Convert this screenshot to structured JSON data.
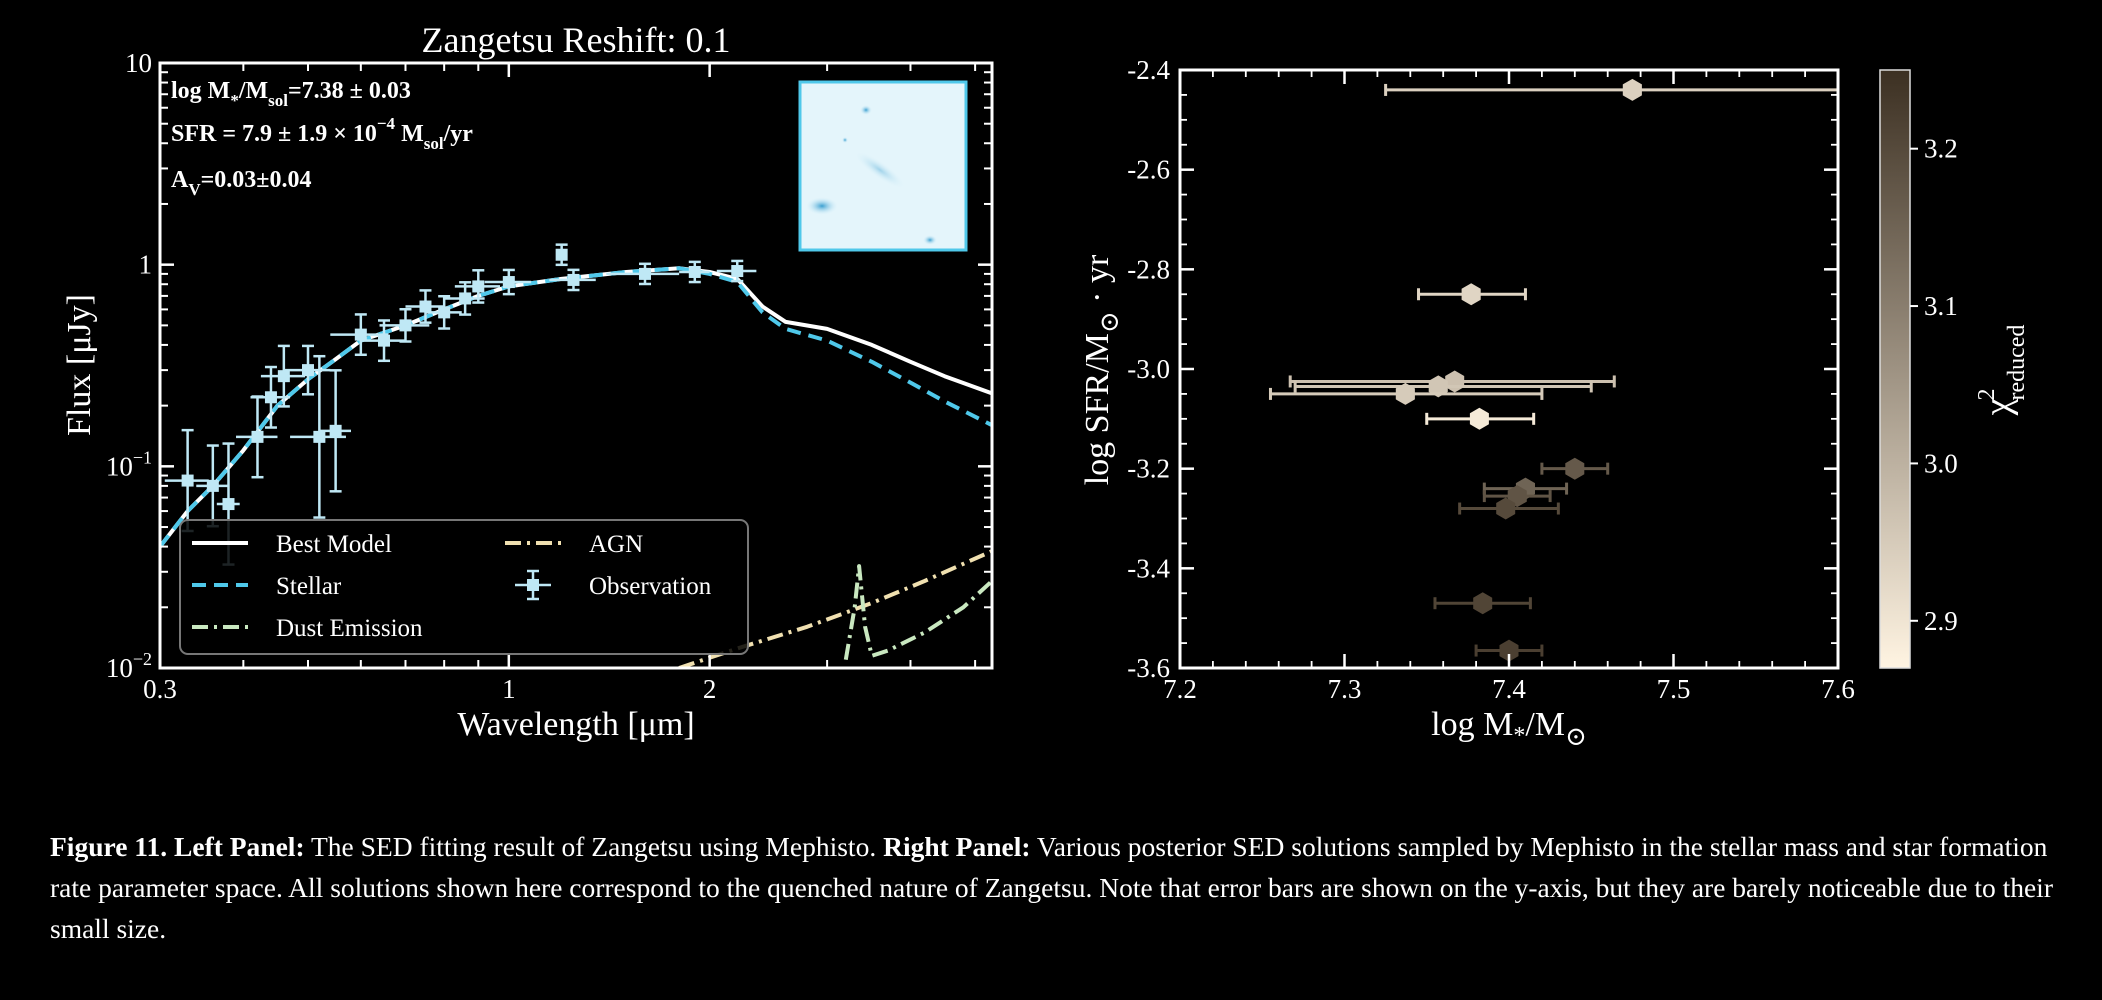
{
  "chart_data": [
    {
      "type": "line",
      "title": "Zangetsu  Reshift: 0.1",
      "xlabel": "Wavelength [μm]",
      "ylabel": "Flux [μJy]",
      "xscale": "log",
      "yscale": "log",
      "xlim": [
        0.3,
        5.3
      ],
      "ylim": [
        0.01,
        10
      ],
      "x_ticks": [
        {
          "v": 0.3,
          "label": "0.3"
        },
        {
          "v": 1,
          "label": "1"
        },
        {
          "v": 2,
          "label": "2"
        }
      ],
      "y_ticks": [
        {
          "v": 0.01,
          "base": "10",
          "exp": "−2"
        },
        {
          "v": 0.1,
          "base": "10",
          "exp": "−1"
        },
        {
          "v": 1,
          "label": "1"
        },
        {
          "v": 10,
          "label": "10"
        }
      ],
      "annotations": {
        "mass": {
          "a": "log M",
          "b": "*",
          "c": "/M",
          "d": "sol",
          "e": "=7.38 ± 0.03"
        },
        "sfr": {
          "a": "SFR = 7.9 ± 1.9 × 10",
          "b": "−4",
          "c": " M",
          "d": "sol",
          "e": "/yr"
        },
        "av": {
          "a": "A",
          "b": "V",
          "c": "=0.03±0.04"
        }
      },
      "legend_position": "lower-left",
      "legend": [
        {
          "label": "Best Model",
          "color": "#ffffff",
          "style": "solid"
        },
        {
          "label": "AGN",
          "color": "#f0e0b0",
          "style": "dashdot"
        },
        {
          "label": "Stellar",
          "color": "#4fc8ea",
          "style": "dashed"
        },
        {
          "label": "Observation",
          "color": "#bfe8f5",
          "style": "errorbar"
        },
        {
          "label": "Dust Emission",
          "color": "#c9e8c0",
          "style": "dashdot"
        }
      ],
      "series": [
        {
          "name": "Best Model",
          "color": "#ffffff",
          "x": [
            0.3,
            0.33,
            0.36,
            0.4,
            0.45,
            0.5,
            0.55,
            0.6,
            0.7,
            0.8,
            0.9,
            1.0,
            1.2,
            1.5,
            1.8,
            2.0,
            2.2,
            2.4,
            2.6,
            3.0,
            3.5,
            4.0,
            4.5,
            5.3
          ],
          "y": [
            0.04,
            0.06,
            0.08,
            0.12,
            0.2,
            0.27,
            0.34,
            0.42,
            0.5,
            0.6,
            0.7,
            0.78,
            0.85,
            0.92,
            0.96,
            0.92,
            0.85,
            0.62,
            0.52,
            0.48,
            0.4,
            0.33,
            0.28,
            0.23
          ]
        },
        {
          "name": "Stellar",
          "color": "#4fc8ea",
          "x": [
            0.3,
            0.33,
            0.36,
            0.4,
            0.45,
            0.5,
            0.55,
            0.6,
            0.7,
            0.8,
            0.9,
            1.0,
            1.2,
            1.5,
            1.8,
            2.0,
            2.2,
            2.4,
            2.6,
            3.0,
            3.5,
            4.0,
            4.5,
            5.3
          ],
          "y": [
            0.04,
            0.06,
            0.08,
            0.12,
            0.2,
            0.27,
            0.34,
            0.42,
            0.5,
            0.6,
            0.7,
            0.78,
            0.85,
            0.92,
            0.96,
            0.9,
            0.82,
            0.58,
            0.48,
            0.42,
            0.33,
            0.26,
            0.21,
            0.16
          ]
        },
        {
          "name": "AGN",
          "color": "#f0e0b0",
          "x": [
            1.8,
            2.2,
            2.8,
            3.5,
            4.2,
            5.3
          ],
          "y": [
            0.01,
            0.0125,
            0.016,
            0.021,
            0.027,
            0.038
          ]
        },
        {
          "name": "Dust Emission",
          "color": "#c9e8c0",
          "x": [
            3.2,
            3.3,
            3.35,
            3.42,
            3.5,
            3.7,
            4.2,
            4.8,
            5.3
          ],
          "y": [
            0.011,
            0.02,
            0.032,
            0.016,
            0.0115,
            0.0122,
            0.015,
            0.02,
            0.027
          ]
        }
      ],
      "observations": [
        {
          "x": 0.33,
          "y": 0.085,
          "xerr": 0.025,
          "yerr": 0.25
        },
        {
          "x": 0.36,
          "y": 0.08,
          "xerr": 0.02,
          "yerr": 0.2
        },
        {
          "x": 0.38,
          "y": 0.065,
          "xerr": 0.015,
          "yerr": 0.3
        },
        {
          "x": 0.42,
          "y": 0.14,
          "xerr": 0.03,
          "yerr": 0.2
        },
        {
          "x": 0.44,
          "y": 0.22,
          "xerr": 0.03,
          "yerr": 0.15
        },
        {
          "x": 0.46,
          "y": 0.28,
          "xerr": 0.035,
          "yerr": 0.15
        },
        {
          "x": 0.5,
          "y": 0.3,
          "xerr": 0.04,
          "yerr": 0.12
        },
        {
          "x": 0.52,
          "y": 0.14,
          "xerr": 0.05,
          "yerr": 0.4
        },
        {
          "x": 0.55,
          "y": 0.15,
          "xerr": 0.03,
          "yerr": 0.3
        },
        {
          "x": 0.6,
          "y": 0.45,
          "xerr": 0.06,
          "yerr": 0.1
        },
        {
          "x": 0.65,
          "y": 0.42,
          "xerr": 0.05,
          "yerr": 0.1
        },
        {
          "x": 0.7,
          "y": 0.5,
          "xerr": 0.06,
          "yerr": 0.08
        },
        {
          "x": 0.75,
          "y": 0.62,
          "xerr": 0.05,
          "yerr": 0.08
        },
        {
          "x": 0.8,
          "y": 0.58,
          "xerr": 0.05,
          "yerr": 0.08
        },
        {
          "x": 0.86,
          "y": 0.68,
          "xerr": 0.06,
          "yerr": 0.08
        },
        {
          "x": 0.9,
          "y": 0.78,
          "xerr": 0.07,
          "yerr": 0.08
        },
        {
          "x": 1.0,
          "y": 0.82,
          "xerr": 0.08,
          "yerr": 0.06
        },
        {
          "x": 1.2,
          "y": 1.12,
          "xerr": 0.0,
          "yerr": 0.05
        },
        {
          "x": 1.25,
          "y": 0.84,
          "xerr": 0.1,
          "yerr": 0.05
        },
        {
          "x": 1.6,
          "y": 0.9,
          "xerr": 0.2,
          "yerr": 0.05
        },
        {
          "x": 1.9,
          "y": 0.92,
          "xerr": 0.1,
          "yerr": 0.05
        },
        {
          "x": 2.2,
          "y": 0.93,
          "xerr": 0.15,
          "yerr": 0.05
        }
      ]
    },
    {
      "type": "scatter",
      "xlabel": {
        "a": "log M",
        "b": "*",
        "c": "/M",
        "d": "⊙"
      },
      "ylabel": {
        "a": "log SFR/M",
        "b": "⊙",
        "c": " · yr"
      },
      "xlim": [
        7.2,
        7.6
      ],
      "ylim": [
        -3.6,
        -2.4
      ],
      "x_ticks": [
        "7.2",
        "7.3",
        "7.4",
        "7.5",
        "7.6"
      ],
      "y_ticks": [
        "-2.4",
        "-2.6",
        "-2.8",
        "-3.0",
        "-3.2",
        "-3.4",
        "-3.6"
      ],
      "colorbar": {
        "label_base": "χ",
        "label_sup": "2",
        "label_sub": "reduced",
        "range": [
          2.87,
          3.25
        ],
        "ticks": [
          "2.9",
          "3.0",
          "3.1",
          "3.2"
        ],
        "colors": [
          "#fff4e2",
          "#3c3022"
        ]
      },
      "points": [
        {
          "x": 7.475,
          "y": -2.44,
          "xerr_lo": 0.15,
          "xerr_hi": 0.125,
          "chi2": 2.94
        },
        {
          "x": 7.377,
          "y": -2.85,
          "xerr_lo": 0.032,
          "xerr_hi": 0.033,
          "chi2": 2.93
        },
        {
          "x": 7.367,
          "y": -3.025,
          "xerr_lo": 0.1,
          "xerr_hi": 0.097,
          "chi2": 2.97
        },
        {
          "x": 7.357,
          "y": -3.035,
          "xerr_lo": 0.087,
          "xerr_hi": 0.093,
          "chi2": 2.96
        },
        {
          "x": 7.337,
          "y": -3.05,
          "xerr_lo": 0.082,
          "xerr_hi": 0.083,
          "chi2": 2.95
        },
        {
          "x": 7.382,
          "y": -3.1,
          "xerr_lo": 0.032,
          "xerr_hi": 0.033,
          "chi2": 2.89
        },
        {
          "x": 7.44,
          "y": -3.2,
          "xerr_lo": 0.02,
          "xerr_hi": 0.02,
          "chi2": 3.17
        },
        {
          "x": 7.41,
          "y": -3.24,
          "xerr_lo": 0.025,
          "xerr_hi": 0.025,
          "chi2": 3.15
        },
        {
          "x": 7.405,
          "y": -3.255,
          "xerr_lo": 0.02,
          "xerr_hi": 0.02,
          "chi2": 3.18
        },
        {
          "x": 7.398,
          "y": -3.28,
          "xerr_lo": 0.028,
          "xerr_hi": 0.032,
          "chi2": 3.2
        },
        {
          "x": 7.384,
          "y": -3.47,
          "xerr_lo": 0.029,
          "xerr_hi": 0.029,
          "chi2": 3.21
        },
        {
          "x": 7.4,
          "y": -3.565,
          "xerr_lo": 0.02,
          "xerr_hi": 0.02,
          "chi2": 3.22
        }
      ]
    }
  ],
  "caption": {
    "figure_label": "Figure 11.",
    "left_label": "Left Panel:",
    "left_text": " The SED fitting result of Zangetsu using Mephisto. ",
    "right_label": "Right Panel:",
    "right_text": " Various posterior SED solutions sampled by Mephisto in the stellar mass and star formation rate parameter space. All solutions shown here correspond to the quenched nature of Zangetsu. Note that error bars are shown on the y-axis, but they are barely noticeable due to their small size."
  }
}
